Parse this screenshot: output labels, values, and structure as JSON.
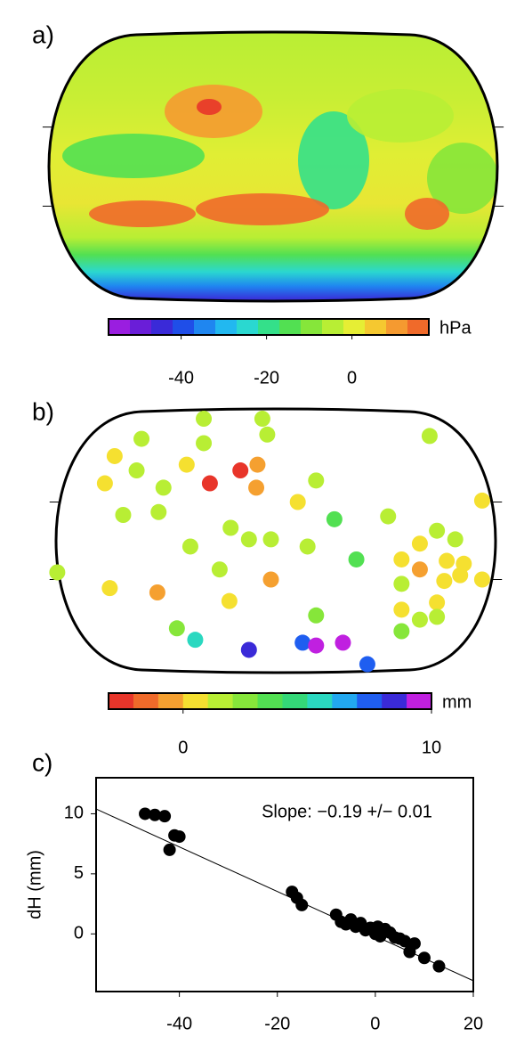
{
  "chart_data": [
    {
      "type": "map",
      "title": "a)",
      "colorbar": {
        "label": "hPa",
        "lim": [
          -57,
          18
        ],
        "ticks": [
          -40,
          -20,
          0
        ],
        "colors": [
          "#9a1ee0",
          "#6a1ed8",
          "#3a2ad8",
          "#1f4ee8",
          "#1f86f0",
          "#22b8f0",
          "#2ad8d0",
          "#34e08a",
          "#52e052",
          "#86e63a",
          "#b8ee34",
          "#e6ee34",
          "#f5c830",
          "#f59a30",
          "#f06a2a"
        ]
      }
    },
    {
      "type": "map",
      "title": "b)",
      "colorbar": {
        "label": "mm",
        "lim": [
          -3,
          10
        ],
        "ticks": [
          0,
          10
        ],
        "colors": [
          "#e8352a",
          "#f06a2a",
          "#f5a030",
          "#f5e030",
          "#b8ee34",
          "#86e63a",
          "#52e052",
          "#34d878",
          "#2ad8c0",
          "#22a8f0",
          "#1f5ef0",
          "#3a2ad8",
          "#c020e0"
        ]
      },
      "stations": {
        "lon": [
          -59,
          -11,
          -110,
          -7,
          -59,
          126,
          -132,
          -15,
          -73,
          -29,
          -54,
          -16,
          -114,
          -140,
          33,
          -92,
          -125,
          18,
          -96,
          48,
          92,
          -37,
          -70,
          -22,
          -4,
          118,
          132,
          147,
          169,
          66,
          26,
          -179,
          -136,
          -46,
          -4,
          103,
          118,
          140,
          154,
          151,
          169,
          103,
          138,
          -97,
          -38,
          103,
          132,
          118,
          132,
          33,
          103,
          -81,
          -66,
          -22,
          22,
          33,
          55,
          75
        ],
        "lat": [
          85,
          85,
          71,
          74,
          68,
          73,
          59,
          53,
          53,
          49,
          40,
          37,
          49,
          40,
          42,
          37,
          18,
          27,
          20,
          15,
          17,
          9,
          -4,
          1,
          1,
          -2,
          7,
          1,
          28,
          -13,
          -4,
          -22,
          -33,
          -20,
          -27,
          -13,
          -20,
          -14,
          -16,
          -24,
          -27,
          -30,
          -28,
          -36,
          -42,
          -48,
          -43,
          -55,
          -53,
          -52,
          -63,
          -61,
          -69,
          -76,
          -71,
          -73,
          -71,
          -86
        ],
        "values": [
          1.5,
          1.5,
          1.5,
          1.5,
          1.5,
          1.5,
          0.5,
          -0.5,
          0.3,
          -2.5,
          -2.5,
          -0.5,
          1.5,
          0.5,
          1.5,
          1.5,
          1.5,
          0.5,
          1.5,
          3.5,
          1.5,
          1.5,
          1.5,
          1.5,
          1.5,
          0.8,
          1.5,
          1.5,
          0.5,
          3,
          1.5,
          1.5,
          0.5,
          1.5,
          -0.5,
          0.5,
          -0.5,
          0.5,
          0.5,
          0.5,
          0.5,
          1.0,
          0.5,
          -0.5,
          0.5,
          0.5,
          0.8,
          1.5,
          1.5,
          2.5,
          2.8,
          2.5,
          5.5,
          8.5,
          7.5,
          9.5,
          9.5,
          7.0
        ]
      }
    },
    {
      "type": "scatter",
      "title": "c)",
      "ylabel": "dH (mm)",
      "annotation": "Slope: −0.19 +/− 0.01",
      "xlim": [
        -57,
        20
      ],
      "xticks": [
        -40,
        -20,
        0,
        20
      ],
      "ylim": [
        -4.8,
        13
      ],
      "yticks": [
        0,
        5,
        10
      ],
      "color": "#000000",
      "x": [
        -47,
        -45,
        -43,
        -42,
        -41,
        -40,
        -17,
        -16,
        -15,
        -8,
        -7,
        -6,
        -5,
        -4,
        -3,
        -2,
        -1,
        0,
        0.5,
        1,
        2,
        3,
        4,
        5,
        6,
        7,
        8,
        10,
        13
      ],
      "y": [
        10,
        9.9,
        9.8,
        7,
        8.2,
        8.1,
        3.5,
        3,
        2.4,
        1.6,
        1,
        0.8,
        1.2,
        0.6,
        0.9,
        0.3,
        0.5,
        0,
        0.6,
        -0.2,
        0.4,
        0.1,
        -0.3,
        -0.4,
        -0.6,
        -1.5,
        -0.8,
        -2,
        -2.7
      ],
      "fit": {
        "x": [
          -57,
          20
        ],
        "y": [
          10.4,
          -3.9
        ]
      }
    }
  ]
}
